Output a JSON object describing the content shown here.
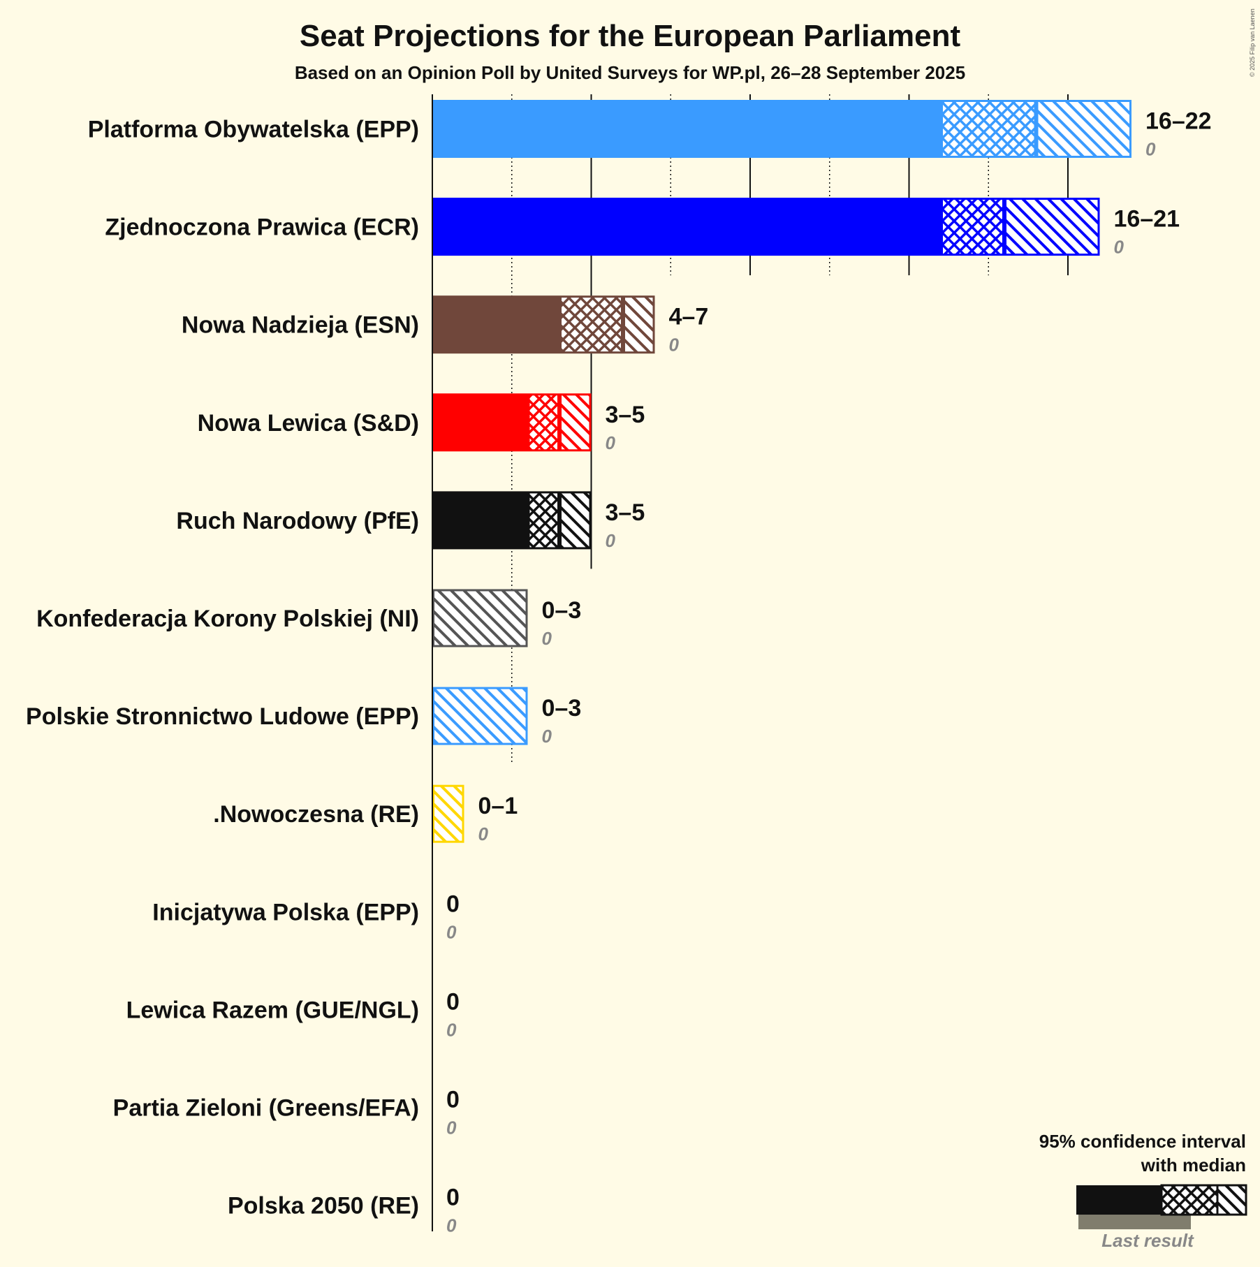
{
  "chart_data": {
    "type": "bar",
    "title": "Seat Projections for the European Parliament",
    "subtitle": "Based on an Opinion Poll by United Surveys for WP.pl, 26–28 September 2025",
    "copyright": "© 2025 Filip van Laenen",
    "xlim": [
      0,
      22
    ],
    "major_gridlines": [
      5,
      10,
      15,
      20
    ],
    "minor_gridlines": [
      2.5,
      7.5,
      12.5,
      17.5
    ],
    "parties": [
      {
        "name": "Platforma Obywatelska (EPP)",
        "color": "#3a9bff",
        "low": 16,
        "median": 19,
        "high": 22,
        "range_label": "16–22",
        "last_result": "0"
      },
      {
        "name": "Zjednoczona Prawica (ECR)",
        "color": "#0000ff",
        "low": 16,
        "median": 18,
        "high": 21,
        "range_label": "16–21",
        "last_result": "0"
      },
      {
        "name": "Nowa Nadzieja (ESN)",
        "color": "#70473b",
        "low": 4,
        "median": 6,
        "high": 7,
        "range_label": "4–7",
        "last_result": "0"
      },
      {
        "name": "Nowa Lewica (S&D)",
        "color": "#ff0000",
        "low": 3,
        "median": 4,
        "high": 5,
        "range_label": "3–5",
        "last_result": "0"
      },
      {
        "name": "Ruch Narodowy (PfE)",
        "color": "#111111",
        "low": 3,
        "median": 4,
        "high": 5,
        "range_label": "3–5",
        "last_result": "0"
      },
      {
        "name": "Konfederacja Korony Polskiej (NI)",
        "color": "#555555",
        "low": 0,
        "median": 0,
        "high": 3,
        "range_label": "0–3",
        "last_result": "0"
      },
      {
        "name": "Polskie Stronnictwo Ludowe (EPP)",
        "color": "#3a9bff",
        "low": 0,
        "median": 0,
        "high": 3,
        "range_label": "0–3",
        "last_result": "0"
      },
      {
        "name": ".Nowoczesna (RE)",
        "color": "#ffd700",
        "low": 0,
        "median": 0,
        "high": 1,
        "range_label": "0–1",
        "last_result": "0"
      },
      {
        "name": "Inicjatywa Polska (EPP)",
        "color": "#3a9bff",
        "low": 0,
        "median": 0,
        "high": 0,
        "range_label": "0",
        "last_result": "0"
      },
      {
        "name": "Lewica Razem (GUE/NGL)",
        "color": "#8b0000",
        "low": 0,
        "median": 0,
        "high": 0,
        "range_label": "0",
        "last_result": "0"
      },
      {
        "name": "Partia Zieloni (Greens/EFA)",
        "color": "#2e8b00",
        "low": 0,
        "median": 0,
        "high": 0,
        "range_label": "0",
        "last_result": "0"
      },
      {
        "name": "Polska 2050 (RE)",
        "color": "#ffd700",
        "low": 0,
        "median": 0,
        "high": 0,
        "range_label": "0",
        "last_result": "0"
      }
    ],
    "legend": {
      "line1": "95% confidence interval",
      "line2": "with median",
      "last_result": "Last result",
      "placement": "bottom-right"
    }
  }
}
